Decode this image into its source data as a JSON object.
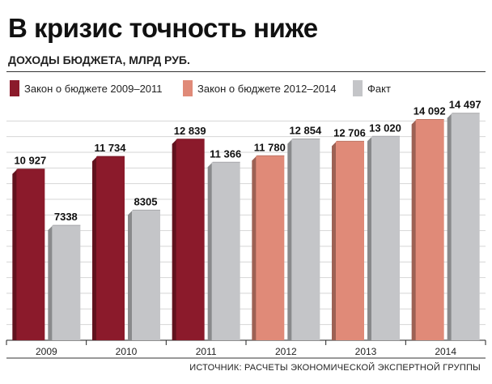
{
  "title": "В кризис точность ниже",
  "subtitle": "ДОХОДЫ БЮДЖЕТА, МЛРД РУБ.",
  "source": "ИСТОЧНИК:  РАСЧЕТЫ ЭКОНОМИЧЕСКОЙ ЭКСПЕРТНОЙ ГРУППЫ",
  "colors": {
    "law_2009_2011": "#8b1a2b",
    "law_2012_2014": "#e08a78",
    "fact": "#c4c5c8"
  },
  "chart_data": {
    "type": "bar",
    "title": "В кризис точность ниже",
    "subtitle": "ДОХОДЫ БЮДЖЕТА, МЛРД РУБ.",
    "ylim": [
      0,
      15000
    ],
    "grid": true,
    "legend_position": "top",
    "series": [
      {
        "name": "Закон о бюджете 2009–2011",
        "color_key": "law_2009_2011"
      },
      {
        "name": "Закон о бюджете 2012–2014",
        "color_key": "law_2012_2014"
      },
      {
        "name": "Факт",
        "color_key": "fact"
      }
    ],
    "groups": [
      {
        "year": "2009",
        "bars": [
          {
            "series": 0,
            "value": 10927,
            "label": "10 927"
          },
          {
            "series": 2,
            "value": 7338,
            "label": "7338"
          }
        ]
      },
      {
        "year": "2010",
        "bars": [
          {
            "series": 0,
            "value": 11734,
            "label": "11 734"
          },
          {
            "series": 2,
            "value": 8305,
            "label": "8305"
          }
        ]
      },
      {
        "year": "2011",
        "bars": [
          {
            "series": 0,
            "value": 12839,
            "label": "12 839"
          },
          {
            "series": 2,
            "value": 11366,
            "label": "11 366"
          }
        ]
      },
      {
        "year": "2012",
        "bars": [
          {
            "series": 1,
            "value": 11780,
            "label": "11 780"
          },
          {
            "series": 2,
            "value": 12854,
            "label": "12 854"
          }
        ]
      },
      {
        "year": "2013",
        "bars": [
          {
            "series": 1,
            "value": 12706,
            "label": "12 706"
          },
          {
            "series": 2,
            "value": 13020,
            "label": "13 020"
          }
        ]
      },
      {
        "year": "2014",
        "bars": [
          {
            "series": 1,
            "value": 14092,
            "label": "14 092"
          },
          {
            "series": 2,
            "value": 14497,
            "label": "14 497"
          }
        ]
      }
    ]
  }
}
